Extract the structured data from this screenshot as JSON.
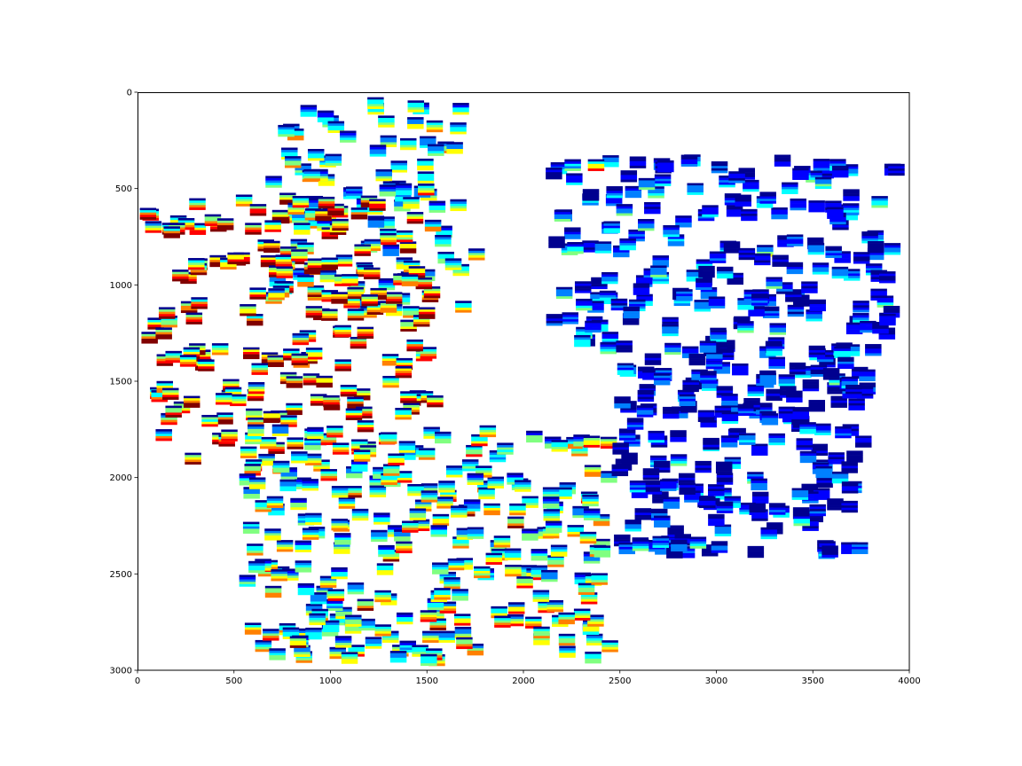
{
  "chart_data": {
    "type": "scatter",
    "marker": "spectrogram-thumbnail",
    "title": "",
    "xlabel": "",
    "ylabel": "",
    "xlim": [
      0,
      4000
    ],
    "ylim": [
      3000,
      0
    ],
    "y_inverted": true,
    "grid": false,
    "legend": "none",
    "x_ticks": [
      "0",
      "500",
      "1000",
      "1500",
      "2000",
      "2500",
      "3000",
      "3500",
      "4000"
    ],
    "y_ticks": [
      "0",
      "500",
      "1000",
      "1500",
      "2000",
      "2500",
      "3000"
    ],
    "colormap": [
      "#00008f",
      "#0000ff",
      "#0080ff",
      "#00ffff",
      "#80ff80",
      "#ffff00",
      "#ff8000",
      "#ff0000",
      "#800000"
    ],
    "thumbnail_size": [
      85,
      60
    ],
    "clusters": [
      {
        "x": [
          700,
          1700
        ],
        "y": [
          50,
          1150
        ],
        "count": 95,
        "warmth": 0.45
      },
      {
        "x": [
          50,
          1550
        ],
        "y": [
          550,
          1850
        ],
        "count": 200,
        "warmth": 0.85
      },
      {
        "x": [
          550,
          2450
        ],
        "y": [
          1750,
          2950
        ],
        "count": 260,
        "warmth": 0.55
      },
      {
        "x": [
          2150,
          3950
        ],
        "y": [
          350,
          1350
        ],
        "count": 190,
        "warmth": 0.2
      },
      {
        "x": [
          2500,
          3800
        ],
        "y": [
          1300,
          2400
        ],
        "count": 210,
        "warmth": 0.15
      },
      {
        "x": [
          2350,
          2450
        ],
        "y": [
          320,
          380
        ],
        "count": 1,
        "warmth": 0.9
      },
      {
        "x": [
          1750,
          1850
        ],
        "y": [
          820,
          880
        ],
        "count": 1,
        "warmth": 0.35
      },
      {
        "x": [
          260,
          340
        ],
        "y": [
          1870,
          1930
        ],
        "count": 1,
        "warmth": 0.8
      }
    ]
  }
}
